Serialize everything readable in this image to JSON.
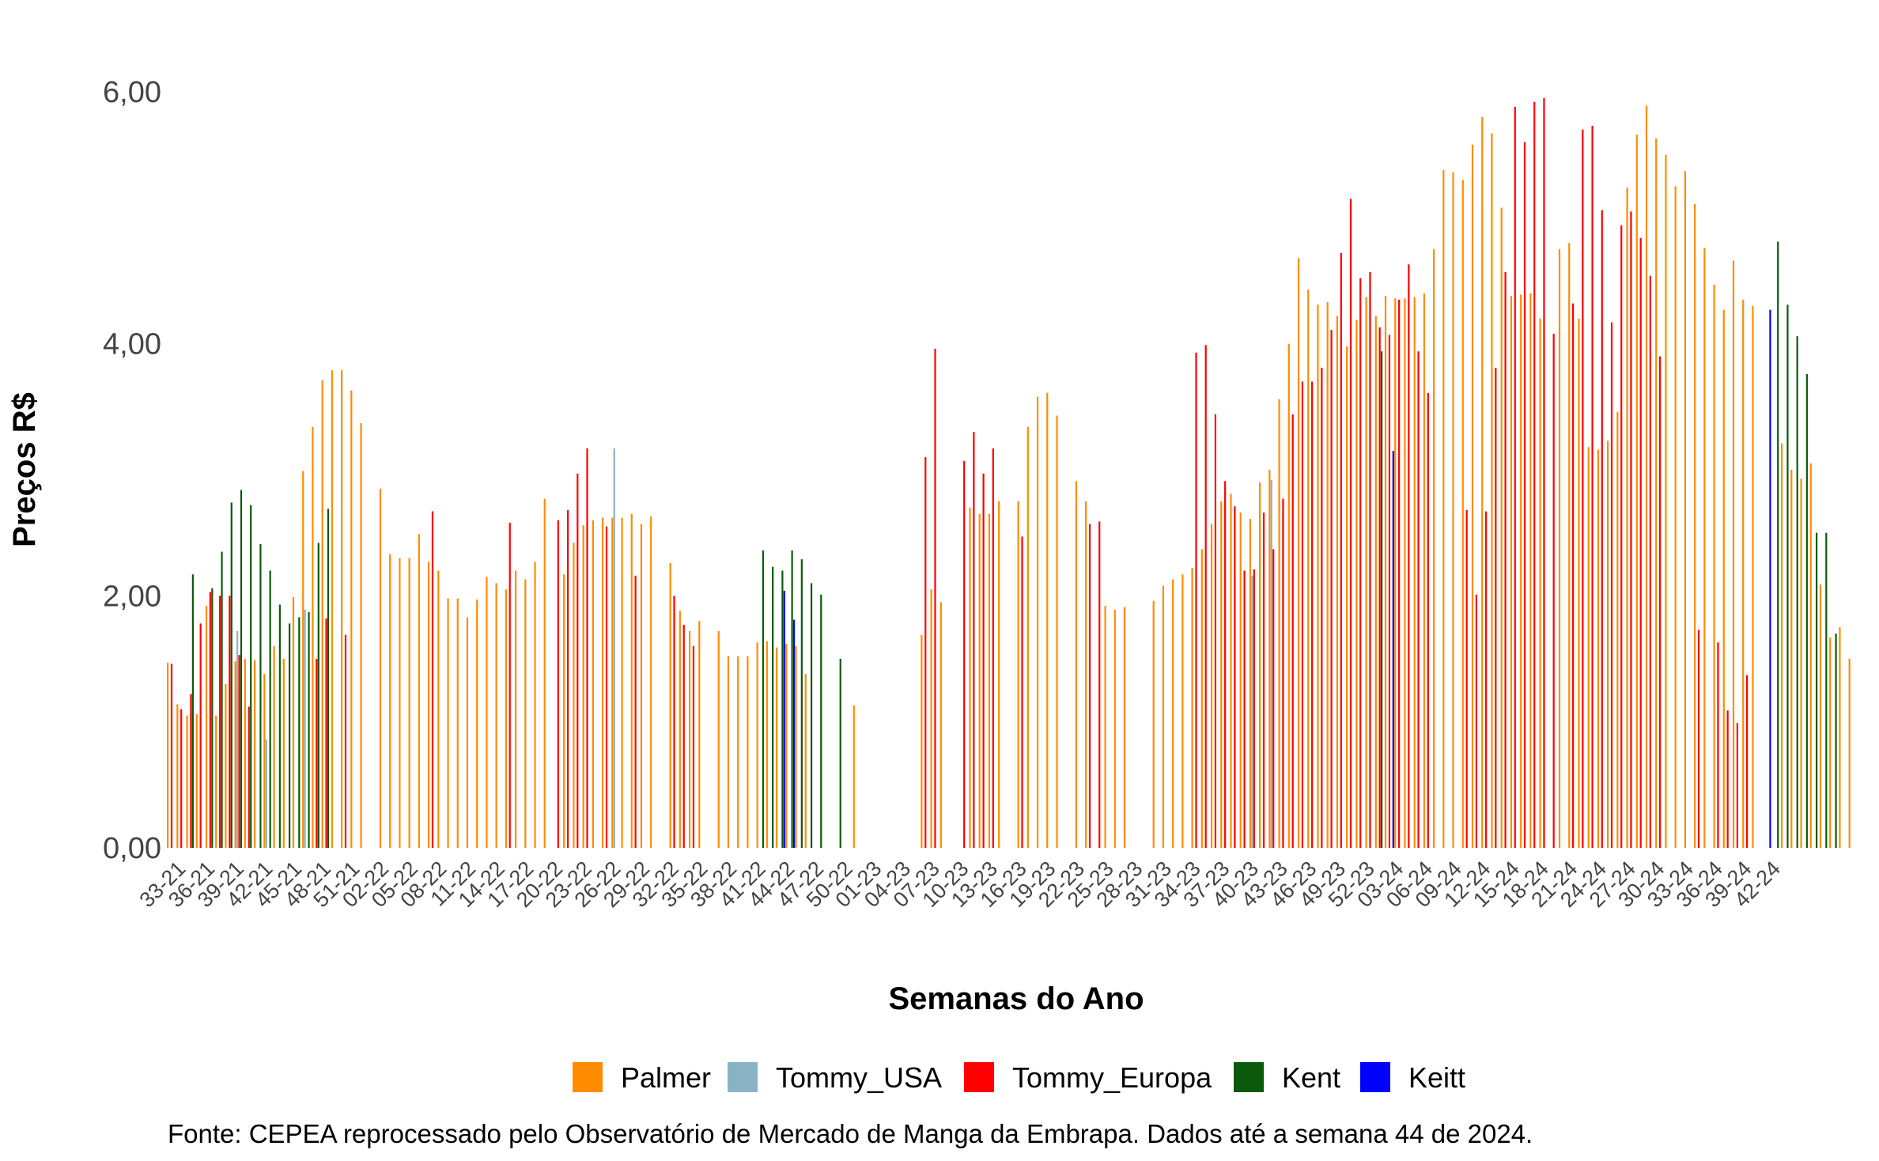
{
  "chart_data": {
    "type": "bar",
    "xlabel": "Semanas do Ano",
    "ylabel": "Preços R$",
    "ylim": [
      0,
      6
    ],
    "y_ticks": [
      "0,00",
      "2,00",
      "4,00",
      "6,00"
    ],
    "grid": false,
    "legend_position": "bottom",
    "caption": "Fonte: CEPEA reprocessado pelo Observatório de Mercado de Manga da Embrapa. Dados até a semana 44 de 2024.",
    "x_tick_labels": [
      "33-21",
      "36-21",
      "39-21",
      "42-21",
      "45-21",
      "48-21",
      "51-21",
      "02-22",
      "05-22",
      "08-22",
      "11-22",
      "14-22",
      "17-22",
      "20-22",
      "23-22",
      "26-22",
      "29-22",
      "32-22",
      "35-22",
      "38-22",
      "41-22",
      "44-22",
      "47-22",
      "50-22",
      "01-23",
      "04-23",
      "07-23",
      "10-23",
      "13-23",
      "16-23",
      "19-23",
      "22-23",
      "25-23",
      "28-23",
      "31-23",
      "34-23",
      "37-23",
      "40-23",
      "43-23",
      "46-23",
      "49-23",
      "52-23",
      "03-24",
      "06-24",
      "09-24",
      "12-24",
      "15-24",
      "18-24",
      "21-24",
      "24-24",
      "27-24",
      "30-24",
      "33-24",
      "36-24",
      "39-24",
      "42-24"
    ],
    "weeks_note": "",
    "series": [
      {
        "name": "Palmer",
        "color": "#FF8C00",
        "values": [
          1.47,
          1.14,
          1.05,
          1.06,
          1.92,
          1.05,
          1.3,
          1.48,
          1.5,
          1.49,
          1.38,
          1.6,
          1.5,
          1.99,
          2.99,
          3.34,
          3.71,
          3.79,
          3.79,
          3.63,
          3.37,
          null,
          2.85,
          2.33,
          2.3,
          2.3,
          2.49,
          2.27,
          2.2,
          1.98,
          1.98,
          1.83,
          1.97,
          2.15,
          2.1,
          2.05,
          2.2,
          2.13,
          2.27,
          2.77,
          null,
          2.17,
          2.42,
          2.56,
          2.6,
          2.62,
          2.62,
          2.62,
          2.65,
          2.57,
          2.63,
          null,
          2.26,
          1.88,
          1.72,
          1.8,
          null,
          1.72,
          1.52,
          1.52,
          1.52,
          1.63,
          1.64,
          1.59,
          1.62,
          1.6,
          1.38,
          null,
          null,
          null,
          null,
          1.13,
          null,
          null,
          null,
          null,
          null,
          null,
          1.69,
          2.05,
          1.95,
          null,
          null,
          2.7,
          2.65,
          2.65,
          2.75,
          null,
          2.75,
          3.34,
          3.58,
          3.61,
          3.43,
          null,
          2.91,
          2.75,
          null,
          1.92,
          1.89,
          1.91,
          null,
          null,
          1.96,
          2.08,
          2.13,
          2.17,
          2.22,
          2.37,
          2.57,
          2.75,
          2.81,
          2.66,
          2.61,
          2.9,
          3.0,
          3.56,
          4.0,
          4.68,
          4.43,
          4.31,
          4.33,
          4.22,
          3.98,
          4.19,
          4.37,
          4.22,
          4.38,
          4.36,
          4.36,
          4.37,
          4.4,
          4.75,
          5.38,
          5.36,
          5.3,
          5.58,
          5.8,
          5.67,
          5.08,
          4.38,
          4.39,
          4.4,
          4.2,
          null,
          4.75,
          4.8,
          4.2,
          3.18,
          3.16,
          3.23,
          3.46,
          5.24,
          5.66,
          5.89,
          5.63,
          5.5,
          5.25,
          5.37,
          5.11,
          4.76,
          4.47,
          4.27,
          4.66,
          4.35,
          4.3,
          null,
          null,
          3.21,
          3.0,
          2.93,
          3.05,
          2.09,
          1.67,
          1.75,
          1.5,
          null
        ]
      },
      {
        "name": "Tommy_USA",
        "color": "#8AB3C5",
        "values": [
          null,
          null,
          null,
          null,
          null,
          null,
          null,
          1.72,
          null,
          null,
          0.86,
          null,
          null,
          null,
          1.89,
          null,
          null,
          null,
          null,
          null,
          null,
          null,
          null,
          null,
          null,
          null,
          null,
          null,
          null,
          null,
          null,
          null,
          null,
          null,
          null,
          null,
          null,
          null,
          null,
          null,
          null,
          null,
          null,
          null,
          null,
          null,
          3.17,
          null,
          null,
          null,
          null,
          null,
          null,
          null,
          null,
          null,
          null,
          null,
          null,
          null,
          null,
          null,
          null,
          null,
          null,
          null,
          null,
          null,
          null,
          null,
          null,
          null,
          null,
          null,
          null,
          null,
          null,
          null,
          null,
          null,
          null,
          null,
          null,
          null,
          null,
          null,
          null,
          null,
          null,
          null,
          null,
          null,
          null,
          null,
          null,
          null,
          null,
          null,
          null,
          null,
          null,
          null,
          null,
          null,
          null,
          null,
          null,
          null,
          null,
          null,
          null,
          null,
          2.16,
          null,
          2.92,
          null,
          null,
          null,
          null,
          null,
          null,
          null,
          null,
          null,
          null,
          null,
          null,
          null,
          null,
          null,
          null,
          null,
          null,
          null,
          null,
          null,
          null,
          null,
          null,
          null,
          null,
          null,
          null,
          null,
          null,
          null,
          null,
          null,
          null,
          null,
          null,
          null,
          null,
          null,
          null,
          null,
          null,
          null,
          null,
          null,
          null,
          null,
          null,
          null,
          null,
          null,
          null,
          null,
          null,
          null,
          null,
          null,
          null,
          null,
          null,
          null,
          null,
          null,
          null
        ]
      },
      {
        "name": "Tommy_Europa",
        "color": "#FF0000",
        "values": [
          1.46,
          1.1,
          1.22,
          1.78,
          2.03,
          2.0,
          2.0,
          1.53,
          1.12,
          null,
          null,
          null,
          null,
          null,
          null,
          1.5,
          1.82,
          null,
          1.69,
          null,
          null,
          null,
          null,
          null,
          null,
          null,
          null,
          2.67,
          null,
          null,
          null,
          null,
          null,
          null,
          null,
          2.58,
          null,
          null,
          null,
          null,
          2.6,
          2.68,
          2.97,
          3.17,
          null,
          2.55,
          null,
          null,
          2.16,
          null,
          null,
          null,
          2.0,
          1.77,
          1.6,
          null,
          null,
          null,
          null,
          null,
          null,
          null,
          null,
          null,
          null,
          null,
          null,
          null,
          null,
          null,
          null,
          null,
          null,
          null,
          null,
          null,
          null,
          null,
          3.1,
          3.96,
          null,
          null,
          3.07,
          3.3,
          2.97,
          3.17,
          null,
          null,
          2.47,
          null,
          null,
          null,
          null,
          null,
          null,
          2.57,
          2.59,
          null,
          null,
          null,
          null,
          null,
          null,
          null,
          null,
          null,
          3.93,
          3.99,
          3.44,
          2.91,
          2.71,
          2.2,
          2.21,
          2.66,
          2.37,
          2.77,
          3.44,
          3.7,
          3.7,
          3.81,
          4.11,
          4.72,
          5.15,
          4.52,
          4.57,
          4.13,
          4.07,
          4.35,
          4.63,
          3.94,
          3.61,
          null,
          null,
          null,
          2.68,
          2.01,
          2.67,
          3.81,
          4.57,
          5.88,
          5.6,
          5.92,
          5.95,
          4.08,
          null,
          4.32,
          5.7,
          5.73,
          5.06,
          4.17,
          4.94,
          5.05,
          4.84,
          4.54,
          3.9,
          null,
          null,
          null,
          1.73,
          null,
          1.63,
          1.09,
          0.99,
          1.37
        ]
      },
      {
        "name": "Kent",
        "color": "#0B5A0B",
        "values": [
          null,
          null,
          2.17,
          null,
          2.06,
          2.35,
          2.74,
          2.84,
          2.72,
          2.41,
          2.2,
          1.93,
          1.78,
          1.83,
          1.87,
          2.42,
          2.69,
          null,
          null,
          null,
          null,
          null,
          null,
          null,
          null,
          null,
          null,
          null,
          null,
          null,
          null,
          null,
          null,
          null,
          null,
          null,
          null,
          null,
          null,
          null,
          null,
          null,
          null,
          null,
          null,
          null,
          null,
          null,
          null,
          null,
          null,
          null,
          null,
          null,
          null,
          null,
          null,
          null,
          null,
          null,
          null,
          2.36,
          2.23,
          2.2,
          2.36,
          2.29,
          2.1,
          2.01,
          null,
          1.5,
          null,
          null,
          null,
          null,
          null,
          null,
          null,
          null,
          null,
          null,
          null,
          null,
          null,
          null,
          null,
          null,
          null,
          null,
          null,
          null,
          null,
          null,
          null,
          null,
          null,
          null,
          null,
          null,
          null,
          null,
          null,
          null,
          null,
          null,
          null,
          null,
          null,
          null,
          null,
          null,
          null,
          null,
          null,
          null,
          null,
          null,
          null,
          null,
          null,
          null,
          null,
          null,
          null,
          null,
          null,
          3.94,
          null,
          null,
          null,
          null,
          null,
          null,
          null,
          null,
          null,
          null,
          null,
          null,
          null,
          null,
          null,
          null,
          null,
          null,
          null,
          null,
          null,
          null,
          null,
          null,
          null,
          null,
          null,
          null,
          null,
          null,
          null,
          null,
          null,
          null,
          null,
          null,
          null,
          null,
          null,
          null,
          4.81,
          4.31,
          4.06,
          3.76,
          2.5,
          2.5,
          1.7,
          null
        ]
      },
      {
        "name": "Keitt",
        "color": "#0000FF",
        "values": [
          null,
          null,
          null,
          null,
          null,
          null,
          null,
          null,
          null,
          null,
          null,
          null,
          null,
          null,
          null,
          null,
          null,
          null,
          null,
          null,
          null,
          null,
          null,
          null,
          null,
          null,
          null,
          null,
          null,
          null,
          null,
          null,
          null,
          null,
          null,
          null,
          null,
          null,
          null,
          null,
          null,
          null,
          null,
          null,
          null,
          null,
          null,
          null,
          null,
          null,
          null,
          null,
          null,
          null,
          null,
          null,
          null,
          null,
          null,
          null,
          null,
          null,
          null,
          2.04,
          1.81,
          null,
          null,
          null,
          null,
          null,
          null,
          null,
          null,
          null,
          null,
          null,
          null,
          null,
          null,
          null,
          null,
          null,
          null,
          null,
          null,
          null,
          null,
          null,
          null,
          null,
          null,
          null,
          null,
          null,
          null,
          null,
          null,
          null,
          null,
          null,
          null,
          null,
          null,
          null,
          null,
          null,
          null,
          null,
          null,
          null,
          null,
          null,
          null,
          null,
          null,
          null,
          null,
          null,
          null,
          null,
          null,
          null,
          null,
          null,
          null,
          null,
          3.15,
          null,
          null,
          null,
          null,
          null,
          null,
          null,
          null,
          null,
          null,
          null,
          null,
          null,
          null,
          null,
          null,
          null,
          null,
          null,
          null,
          null,
          null,
          null,
          null,
          null,
          null,
          null,
          null,
          null,
          null,
          null,
          null,
          null,
          null,
          null,
          null,
          null,
          null,
          4.27,
          null,
          null,
          null,
          null,
          null,
          null,
          null,
          null,
          null
        ]
      }
    ]
  }
}
